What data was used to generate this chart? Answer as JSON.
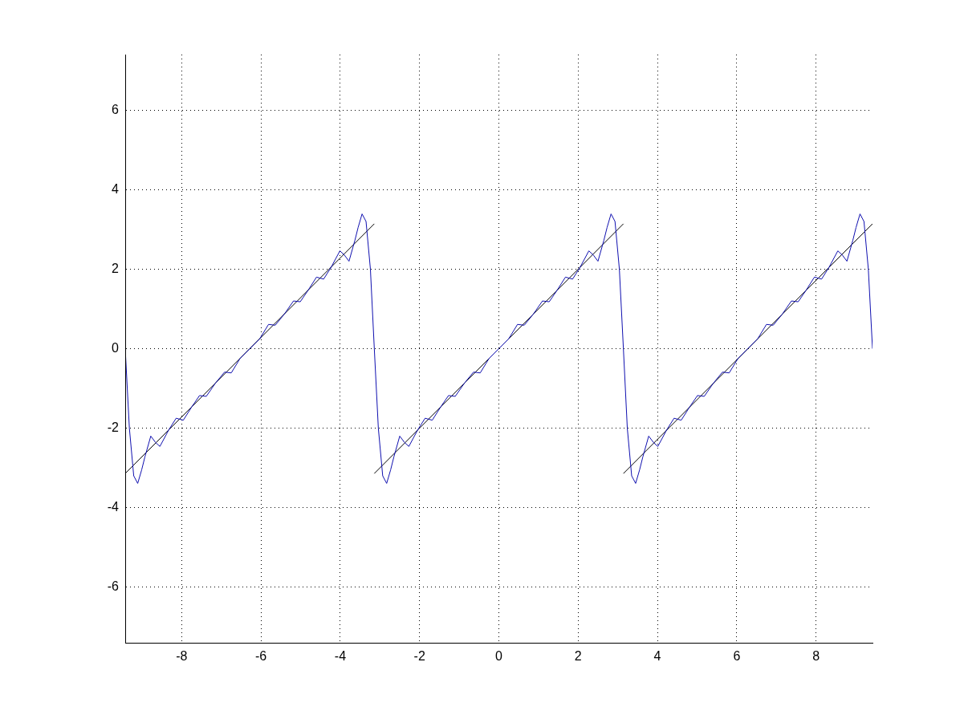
{
  "chart_data": {
    "type": "line",
    "xlim": [
      -9.4248,
      9.4248
    ],
    "ylim": [
      -7.4,
      7.4
    ],
    "xticks": [
      -8,
      -6,
      -4,
      -2,
      0,
      2,
      4,
      6,
      8
    ],
    "yticks": [
      -6,
      -4,
      -2,
      0,
      2,
      4,
      6
    ],
    "grid": true,
    "legend": false,
    "marker": "none",
    "series": [
      {
        "color": "#1010b0",
        "x": [
          -9.4248,
          -9.32,
          -9.21,
          -9.11,
          -9.01,
          -8.93,
          -8.78,
          -8.66,
          -8.55,
          -8.33,
          -8.14,
          -7.96,
          -7.75,
          -7.55,
          -7.38,
          -7.15,
          -6.92,
          -6.75,
          -6.53,
          -6.28,
          -6.03,
          -5.81,
          -5.64,
          -5.41,
          -5.18,
          -5.01,
          -4.81,
          -4.6,
          -4.42,
          -4.23,
          -4.01,
          -3.9,
          -3.78,
          -3.63,
          -3.55,
          -3.45,
          -3.35,
          -3.24,
          -3.1416,
          -3.04,
          -2.93,
          -2.83,
          -2.73,
          -2.65,
          -2.5,
          -2.38,
          -2.27,
          -2.05,
          -1.86,
          -1.68,
          -1.47,
          -1.27,
          -1.1,
          -0.87,
          -0.64,
          -0.47,
          -0.25,
          0,
          0.25,
          0.47,
          0.64,
          0.87,
          1.1,
          1.27,
          1.47,
          1.68,
          1.86,
          2.05,
          2.27,
          2.38,
          2.5,
          2.65,
          2.73,
          2.83,
          2.93,
          3.04,
          3.1416,
          3.24,
          3.35,
          3.45,
          3.55,
          3.63,
          3.78,
          3.9,
          4.01,
          4.23,
          4.42,
          4.6,
          4.81,
          5.01,
          5.18,
          5.41,
          5.64,
          5.81,
          6.03,
          6.28,
          6.53,
          6.75,
          6.92,
          7.15,
          7.38,
          7.55,
          7.75,
          7.96,
          8.14,
          8.33,
          8.55,
          8.66,
          8.78,
          8.93,
          9.01,
          9.11,
          9.21,
          9.32,
          9.4248
        ],
        "values": [
          0,
          -2,
          -3.2,
          -3.39,
          -3.05,
          -2.73,
          -2.2,
          -2.36,
          -2.46,
          -2.05,
          -1.75,
          -1.8,
          -1.47,
          -1.18,
          -1.2,
          -0.87,
          -0.59,
          -0.61,
          -0.25,
          0,
          0.25,
          0.61,
          0.59,
          0.87,
          1.2,
          1.18,
          1.47,
          1.8,
          1.75,
          2.05,
          2.46,
          2.36,
          2.2,
          2.73,
          3.05,
          3.39,
          3.2,
          2,
          0,
          -2,
          -3.2,
          -3.39,
          -3.05,
          -2.73,
          -2.2,
          -2.36,
          -2.46,
          -2.05,
          -1.75,
          -1.8,
          -1.47,
          -1.18,
          -1.2,
          -0.87,
          -0.59,
          -0.61,
          -0.25,
          0,
          0.25,
          0.61,
          0.59,
          0.87,
          1.2,
          1.18,
          1.47,
          1.8,
          1.75,
          2.05,
          2.46,
          2.36,
          2.2,
          2.73,
          3.05,
          3.39,
          3.2,
          2,
          0,
          -2,
          -3.2,
          -3.39,
          -3.05,
          -2.73,
          -2.2,
          -2.36,
          -2.46,
          -2.05,
          -1.75,
          -1.8,
          -1.47,
          -1.18,
          -1.2,
          -0.87,
          -0.59,
          -0.61,
          -0.25,
          0,
          0.25,
          0.61,
          0.59,
          0.87,
          1.2,
          1.18,
          1.47,
          1.8,
          1.75,
          2.05,
          2.46,
          2.36,
          2.2,
          2.73,
          3.05,
          3.39,
          3.2,
          2,
          0
        ]
      },
      {
        "color": "#000000",
        "x": [
          -9.4248,
          -3.1416
        ],
        "values": [
          -3.1416,
          3.1416
        ]
      },
      {
        "color": "#000000",
        "x": [
          -3.1416,
          3.1416
        ],
        "values": [
          -3.1416,
          3.1416
        ]
      },
      {
        "color": "#000000",
        "x": [
          3.1416,
          9.4248
        ],
        "values": [
          -3.1416,
          3.1416
        ]
      }
    ]
  }
}
